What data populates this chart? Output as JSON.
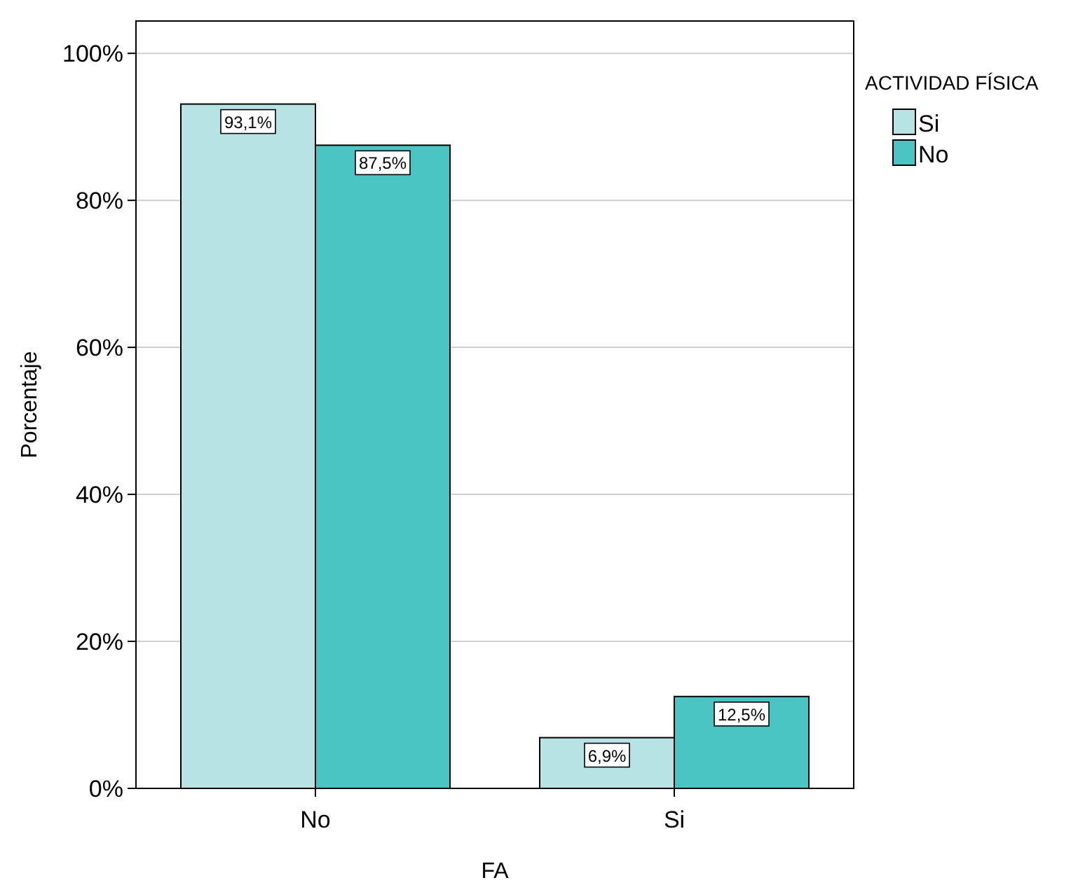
{
  "chart_data": {
    "type": "bar",
    "xlabel": "FA",
    "ylabel": "Porcentaje",
    "legend_title": "ACTIVIDAD FÍSICA",
    "categories": [
      "No",
      "Si"
    ],
    "series": [
      {
        "name": "Si",
        "color": "#b7e3e4",
        "values": [
          93.1,
          6.9
        ],
        "value_labels": [
          "93,1%",
          "6,9%"
        ]
      },
      {
        "name": "No",
        "color": "#4bc4c4",
        "values": [
          87.5,
          12.5
        ],
        "value_labels": [
          "87,5%",
          "12,5%"
        ]
      }
    ],
    "ylim": [
      0,
      104.4
    ],
    "yticks": [
      {
        "value": 0,
        "label": "0%"
      },
      {
        "value": 20,
        "label": "20%"
      },
      {
        "value": 40,
        "label": "40%"
      },
      {
        "value": 60,
        "label": "60%"
      },
      {
        "value": 80,
        "label": "80%"
      },
      {
        "value": 100,
        "label": "100%"
      }
    ],
    "grid": "y",
    "legend": "top right"
  }
}
